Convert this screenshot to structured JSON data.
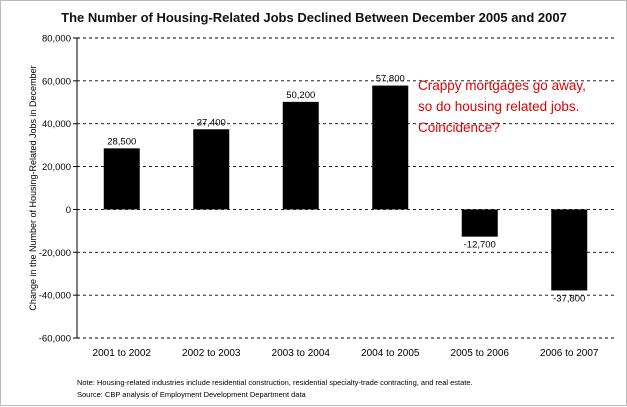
{
  "chart_data": {
    "type": "bar",
    "title": "The Number of Housing-Related Jobs Declined Between December 2005 and 2007",
    "ylabel": "Change in the Number of Housing-Related Jobs in December",
    "xlabel": "",
    "categories": [
      "2001 to 2002",
      "2002 to 2003",
      "2003 to 2004",
      "2004 to 2005",
      "2005 to 2006",
      "2006 to 2007"
    ],
    "values": [
      28500,
      37400,
      50200,
      57800,
      -12700,
      -37800
    ],
    "value_labels": [
      "28,500",
      "37,400",
      "50,200",
      "57,800",
      "-12,700",
      "-37,800"
    ],
    "ylim": [
      -60000,
      80000
    ],
    "yticks": [
      80000,
      60000,
      40000,
      20000,
      0,
      -20000,
      -40000,
      -60000
    ],
    "ytick_labels": [
      "80,000",
      "60,000",
      "40,000",
      "20,000",
      "0",
      "-20,000",
      "-40,000",
      "-60,000"
    ],
    "grid": "horizontal dashed",
    "bar_color": "#000000",
    "annotation": {
      "lines": [
        "Crappy mortgages go away,",
        "so do housing related jobs.",
        "Coincidence?"
      ],
      "color": "#e00000"
    },
    "notes": [
      "Note: Housing-related industries include residential construction, residential specialty-trade contracting, and real estate.",
      "Source: CBP analysis of Employment Development Department data"
    ]
  }
}
